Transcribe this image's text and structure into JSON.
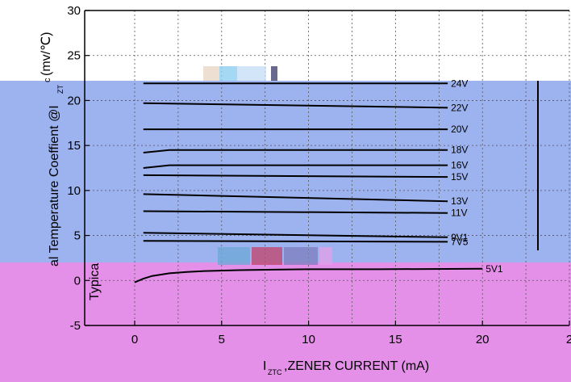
{
  "chart_data": {
    "type": "line",
    "title": "",
    "xlabel": "I",
    "xlabel_sub": "ZTC",
    "xlabel_rest": ",ZENER CURRENT (mA)",
    "ylabel_visible": "Typica",
    "ylabel_top_fragment": "(mv/℃)",
    "ylabel_top_sub": "c",
    "ylabel_main_fragment": "al Temperature Coeffient @I",
    "ylabel_main_sub": "ZT",
    "xlim": [
      0,
      25
    ],
    "ylim": [
      -5,
      30
    ],
    "x_ticks": [
      "0",
      "5",
      "10",
      "15",
      "20",
      "2"
    ],
    "y_ticks": [
      "-5",
      "0",
      "5",
      "10",
      "15",
      "20",
      "25",
      "30"
    ],
    "grid": true,
    "series": [
      {
        "name": "24V",
        "x": [
          0.5,
          18
        ],
        "y": [
          21.9,
          21.9
        ]
      },
      {
        "name": "22V",
        "x": [
          0.5,
          18
        ],
        "y": [
          19.7,
          19.2
        ]
      },
      {
        "name": "20V",
        "x": [
          0.5,
          18
        ],
        "y": [
          16.8,
          16.8
        ]
      },
      {
        "name": "18V",
        "x": [
          0.5,
          2,
          18
        ],
        "y": [
          14.2,
          14.5,
          14.5
        ]
      },
      {
        "name": "16V",
        "x": [
          0.5,
          2,
          18
        ],
        "y": [
          12.5,
          12.8,
          12.8
        ]
      },
      {
        "name": "15V",
        "x": [
          0.5,
          18
        ],
        "y": [
          11.7,
          11.5
        ]
      },
      {
        "name": "13V",
        "x": [
          0.5,
          18
        ],
        "y": [
          9.6,
          8.8
        ]
      },
      {
        "name": "11V",
        "x": [
          0.5,
          18
        ],
        "y": [
          7.7,
          7.5
        ]
      },
      {
        "name": "9V1",
        "x": [
          0.5,
          18
        ],
        "y": [
          5.3,
          4.8
        ]
      },
      {
        "name": "7V5",
        "x": [
          0.5,
          18
        ],
        "y": [
          4.4,
          4.3
        ]
      },
      {
        "name": "5V1",
        "x": [
          0,
          0.5,
          1,
          2,
          3,
          4,
          6,
          8,
          10,
          14,
          20
        ],
        "y": [
          -0.2,
          0.2,
          0.5,
          0.8,
          0.95,
          1.05,
          1.15,
          1.2,
          1.25,
          1.25,
          1.3
        ]
      }
    ]
  },
  "colors": {
    "blue_band": "#9db3f0",
    "pink_band": "#e48fe8",
    "axis": "#000000",
    "grid": "#555555"
  }
}
